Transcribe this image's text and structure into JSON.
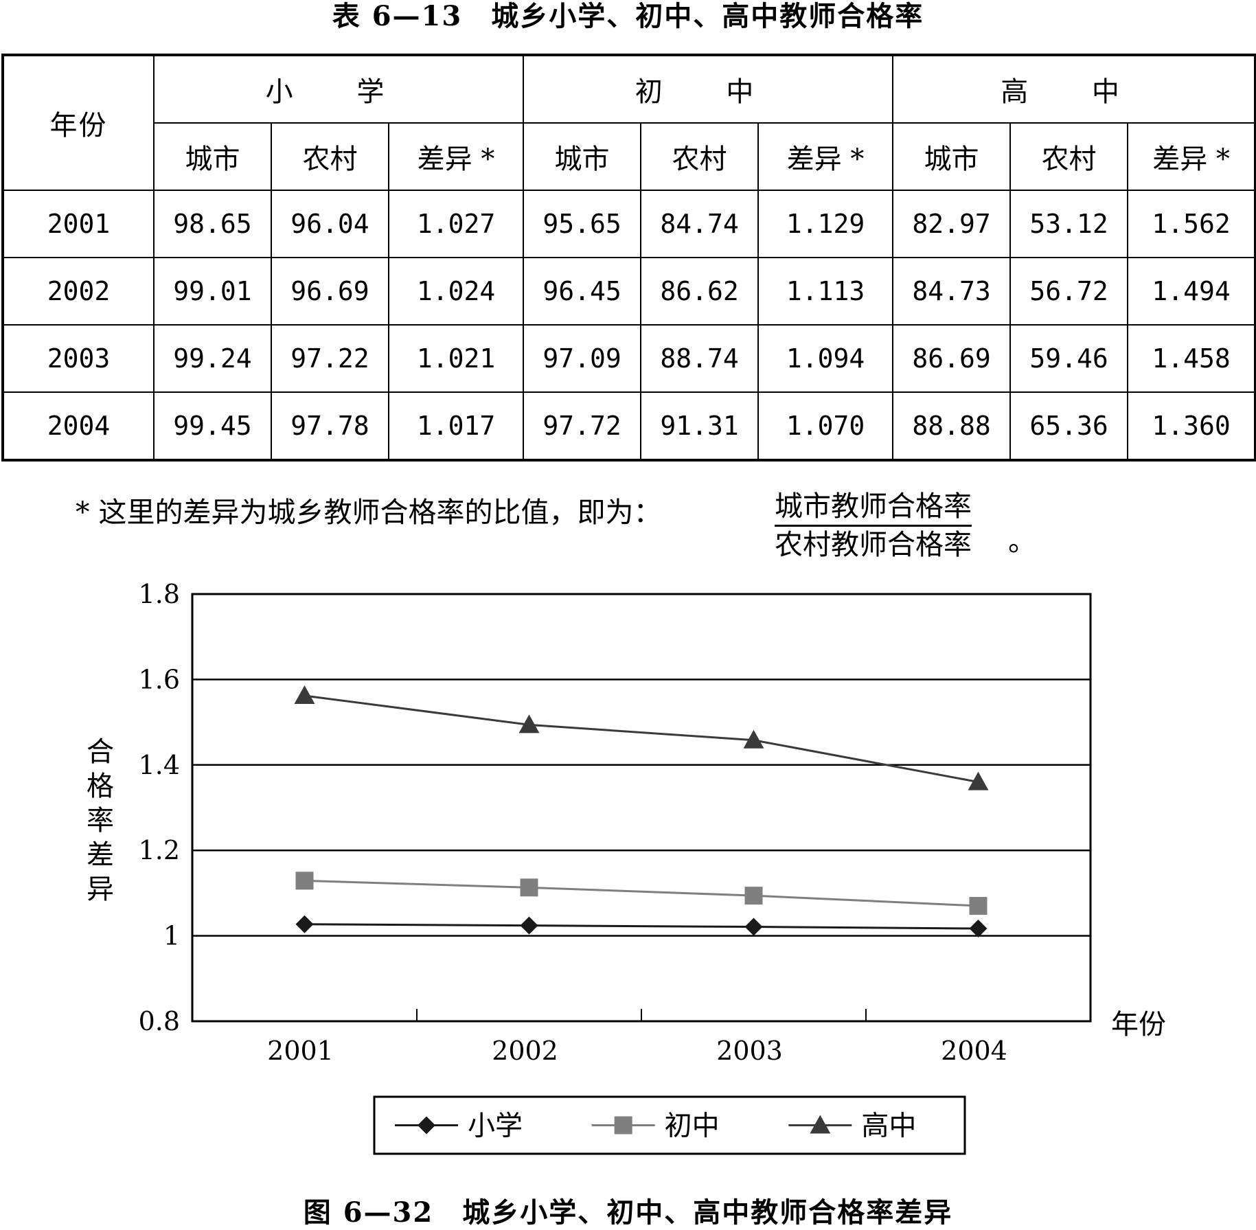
{
  "table": {
    "title": "表 6—13　城乡小学、初中、高中教师合格率",
    "year_header": "年份",
    "groups": [
      "小 学",
      "初 中",
      "高 中"
    ],
    "subheaders": [
      "城市",
      "农村",
      "差异 *",
      "城市",
      "农村",
      "差异 *",
      "城市",
      "农村",
      "差异 *"
    ],
    "rows": [
      {
        "year": "2001",
        "cells": [
          "98.65",
          "96.04",
          "1.027",
          "95.65",
          "84.74",
          "1.129",
          "82.97",
          "53.12",
          "1.562"
        ]
      },
      {
        "year": "2002",
        "cells": [
          "99.01",
          "96.69",
          "1.024",
          "96.45",
          "86.62",
          "1.113",
          "84.73",
          "56.72",
          "1.494"
        ]
      },
      {
        "year": "2003",
        "cells": [
          "99.24",
          "97.22",
          "1.021",
          "97.09",
          "88.74",
          "1.094",
          "86.69",
          "59.46",
          "1.458"
        ]
      },
      {
        "year": "2004",
        "cells": [
          "99.45",
          "97.78",
          "1.017",
          "97.72",
          "91.31",
          "1.070",
          "88.88",
          "65.36",
          "1.360"
        ]
      }
    ]
  },
  "note": {
    "text": "* 这里的差异为城乡教师合格率的比值，即为：",
    "numerator": "城市教师合格率",
    "denominator": "农村教师合格率",
    "end": "。"
  },
  "chart_data": {
    "type": "line",
    "title": "图 6—32　城乡小学、初中、高中教师合格率差异",
    "xlabel": "年份",
    "ylabel": "合格率差异",
    "x": [
      "2001",
      "2002",
      "2003",
      "2004"
    ],
    "y_ticks": [
      "0.8",
      "1",
      "1.2",
      "1.4",
      "1.6",
      "1.8"
    ],
    "ylim": [
      0.8,
      1.8
    ],
    "grid": true,
    "legend_position": "bottom",
    "series": [
      {
        "name": "小学",
        "values": [
          1.027,
          1.024,
          1.021,
          1.017
        ],
        "marker": "diamond",
        "color": "#1a1a1a"
      },
      {
        "name": "初中",
        "values": [
          1.129,
          1.113,
          1.094,
          1.07
        ],
        "marker": "square",
        "color": "#7f7f7f"
      },
      {
        "name": "高中",
        "values": [
          1.562,
          1.494,
          1.458,
          1.36
        ],
        "marker": "triangle",
        "color": "#3a3a3a"
      }
    ]
  }
}
